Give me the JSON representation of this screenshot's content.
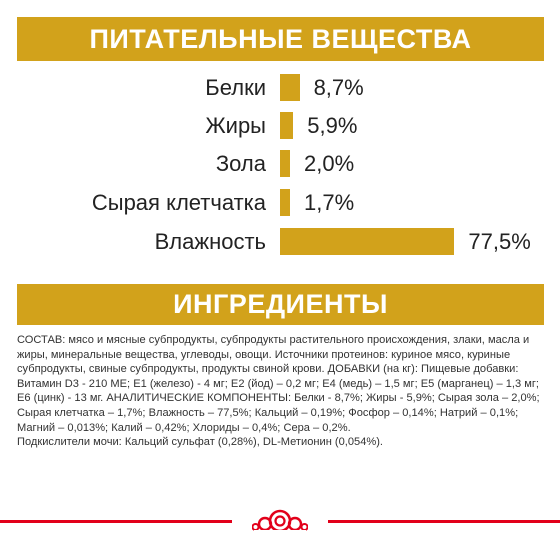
{
  "nutrients_title": "ПИТАТЕЛЬНЫЕ ВЕЩЕСТВА",
  "nutrients": [
    {
      "label": "Белки",
      "value": "8,7%",
      "percent": 8.7
    },
    {
      "label": "Жиры",
      "value": "5,9%",
      "percent": 5.9
    },
    {
      "label": "Зола",
      "value": "2,0%",
      "percent": 2.0
    },
    {
      "label": "Сырая клетчатка",
      "value": "1,7%",
      "percent": 1.7
    },
    {
      "label": "Влажность",
      "value": "77,5%",
      "percent": 77.5
    }
  ],
  "ingredients_title": "ИНГРЕДИЕНТЫ",
  "composition_text": "СОСТАВ: мясо и мясные субпродукты, субпродукты растительного происхождения, злаки, масла и жиры, минеральные вещества, углеводы, овощи. Источники протеинов: куриное мясо, куриные субпродукты, свиные субпродукты, продукты свиной крови. ДОБАВКИ (на кг): Пищевые добавки: Витамин D3 - 210 МЕ; Е1 (железо) - 4 мг; Е2 (йод) – 0,2 мг; Е4 (медь) – 1,5 мг; Е5 (марганец) – 1,3 мг; Е6 (цинк) - 13 мг. АНАЛИТИЧЕСКИЕ КОМПОНЕНТЫ: Белки - 8,7%; Жиры - 5,9%; Сырая зола – 2,0%; Сырая клетчатка – 1,7%; Влажность – 77,5%; Кальций – 0,19%; Фосфор – 0,14%; Натрий – 0,1%; Магний – 0,013%; Калий – 0,42%; Хлориды – 0,4%; Сера – 0,2%.",
  "urine_text": "Подкислители мочи: Кальций сульфат (0,28%), DL-Метионин (0,054%).",
  "colors": {
    "accent": "#d2a21b",
    "brand_red": "#e2001a"
  },
  "logo_icon": "royal-canin-crown-icon"
}
